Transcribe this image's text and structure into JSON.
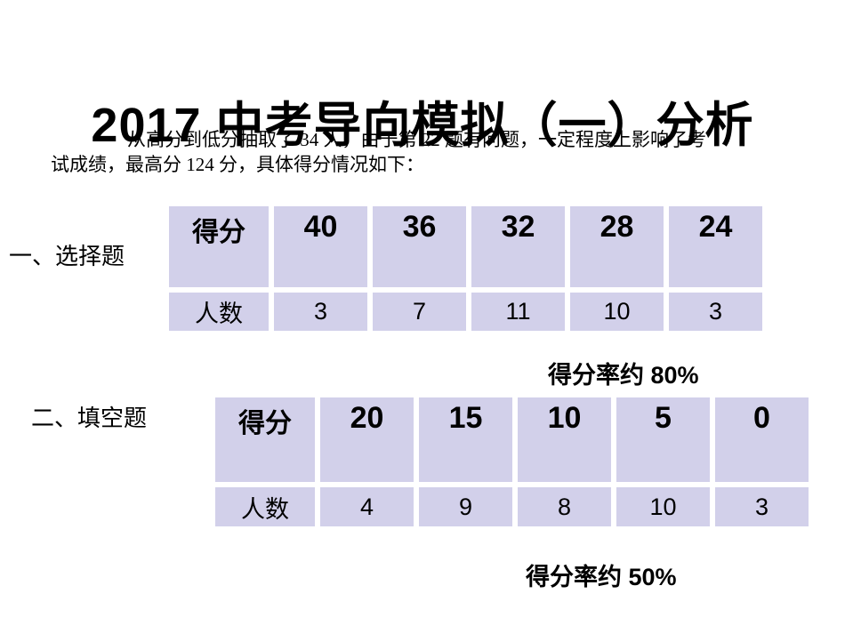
{
  "slide": {
    "title": "2017 中考导向模拟（一）分析",
    "intro": {
      "line1": "从高分到低分抽取了 34 人，由于第 22 题有问题，一定程度上影响了考",
      "line2": "试成绩，最高分 124 分，具体得分情况如下："
    }
  },
  "sections": [
    {
      "label": "一、选择题",
      "rate_note": "得分率约 80%",
      "table": {
        "header_label": "得分",
        "row_label": "人数",
        "scores": [
          "40",
          "36",
          "32",
          "28",
          "24"
        ],
        "counts": [
          "3",
          "7",
          "11",
          "10",
          "3"
        ]
      }
    },
    {
      "label": "二、填空题",
      "rate_note": "得分率约 50%",
      "table": {
        "header_label": "得分",
        "row_label": "人数",
        "scores": [
          "20",
          "15",
          "10",
          "5",
          "0"
        ],
        "counts": [
          "4",
          "9",
          "8",
          "10",
          "3"
        ]
      }
    }
  ],
  "chart_data": [
    {
      "type": "table",
      "title": "一、选择题",
      "rows": [
        "得分",
        "人数"
      ],
      "categories": [
        40,
        36,
        32,
        28,
        24
      ],
      "values": [
        3,
        7,
        11,
        10,
        3
      ],
      "annotation": "得分率约 80%"
    },
    {
      "type": "table",
      "title": "二、填空题",
      "rows": [
        "得分",
        "人数"
      ],
      "categories": [
        20,
        15,
        10,
        5,
        0
      ],
      "values": [
        4,
        9,
        8,
        10,
        3
      ],
      "annotation": "得分率约 50%"
    }
  ],
  "colors": {
    "cell_background": "#d2d0ea",
    "page_background": "#ffffff",
    "text": "#000000"
  }
}
